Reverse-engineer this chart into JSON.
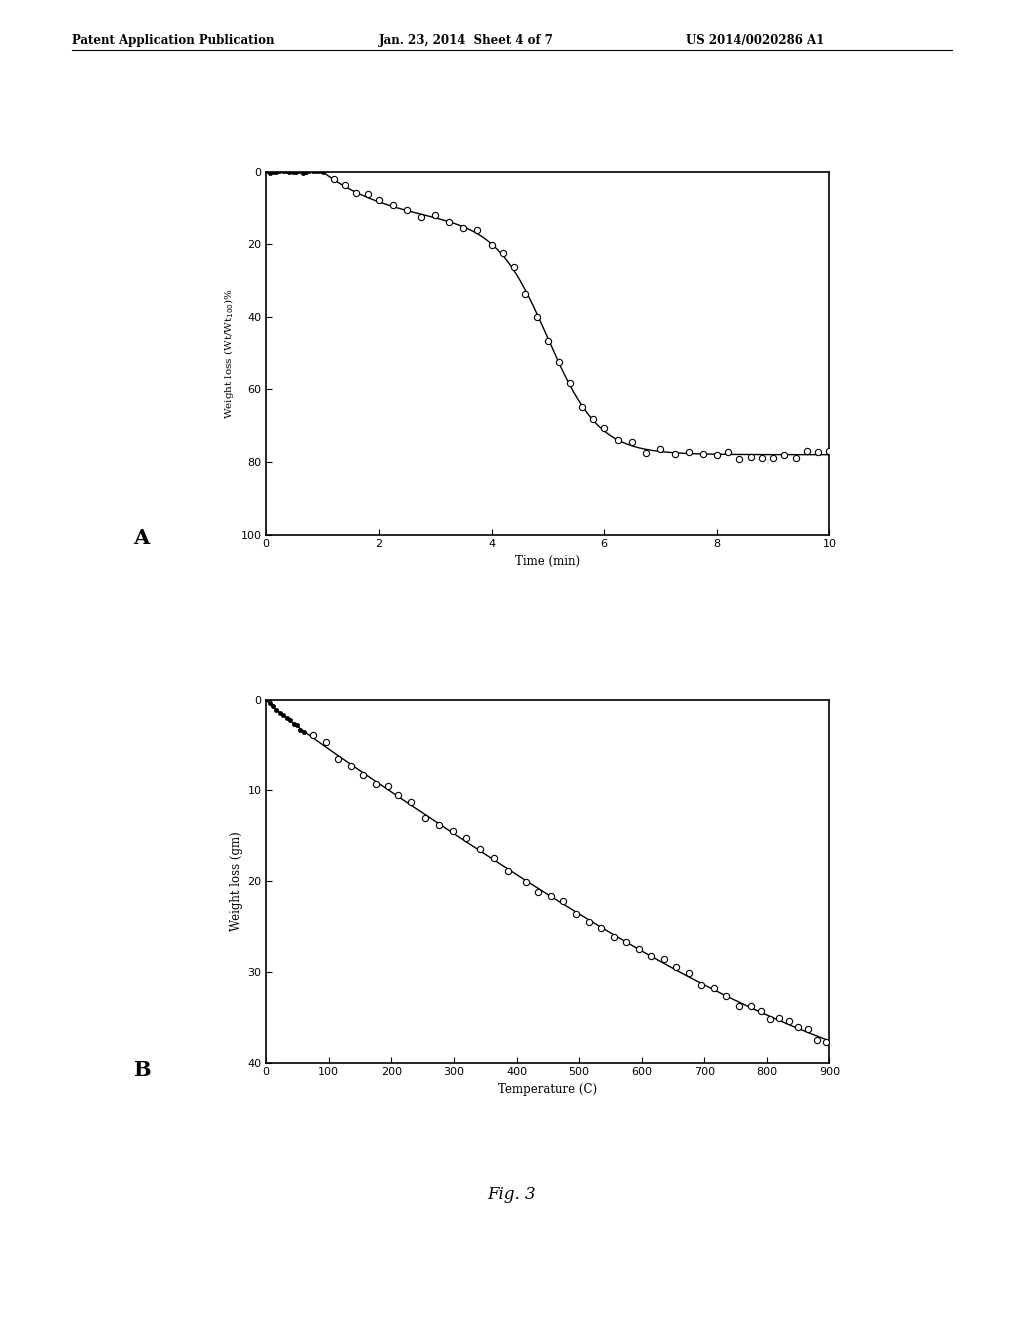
{
  "header_left": "Patent Application Publication",
  "header_center": "Jan. 23, 2014  Sheet 4 of 7",
  "header_right": "US 2014/0020286 A1",
  "fig_label": "Fig. 3",
  "panel_A": {
    "label": "A",
    "xlabel": "Time (min)",
    "ylabel": "Weight loss (Wt/Wt₀₀₀)%",
    "xlim": [
      0,
      10
    ],
    "ylim": [
      100,
      0
    ],
    "xticks": [
      0,
      2,
      4,
      6,
      8,
      10
    ],
    "yticks": [
      0,
      20,
      40,
      60,
      80,
      100
    ]
  },
  "panel_B": {
    "label": "B",
    "xlabel": "Temperature (C)",
    "ylabel": "Weight loss (gm)",
    "xlim": [
      0,
      900
    ],
    "ylim": [
      40,
      0
    ],
    "xticks": [
      0,
      100,
      200,
      300,
      400,
      500,
      600,
      700,
      800,
      900
    ],
    "yticks": [
      0,
      10,
      20,
      30,
      40
    ]
  },
  "bg_color": "#ffffff",
  "line_color": "#000000",
  "marker_color": "#ffffff",
  "marker_edge_color": "#000000"
}
